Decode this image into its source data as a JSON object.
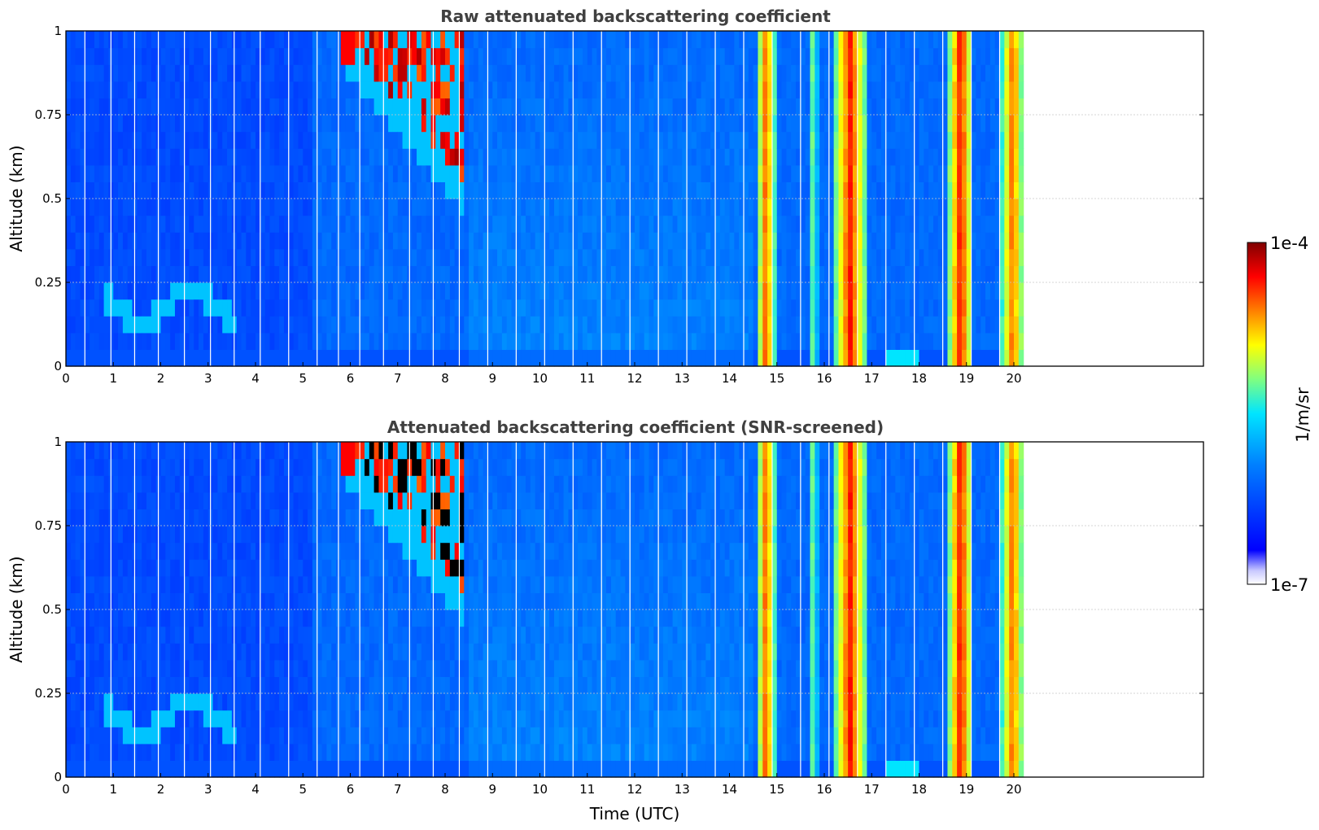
{
  "chart_data": [
    {
      "type": "heatmap",
      "title": "Raw attenuated backscattering coefficient",
      "xlabel": "",
      "ylabel": "Altitude (km)",
      "xlim": [
        0,
        24
      ],
      "ylim": [
        0,
        1
      ],
      "xticks": [
        "0",
        "1",
        "2",
        "3",
        "4",
        "5",
        "6",
        "7",
        "8",
        "9",
        "10",
        "11",
        "12",
        "13",
        "14",
        "15",
        "16",
        "17",
        "18",
        "19",
        "20"
      ],
      "yticks": [
        "0",
        "0.25",
        "0.5",
        "0.75",
        "1"
      ],
      "grid": true,
      "data_end_hour": 20.2,
      "variant": "raw"
    },
    {
      "type": "heatmap",
      "title": "Attenuated backscattering coefficient (SNR-screened)",
      "xlabel": "Time (UTC)",
      "ylabel": "Altitude (km)",
      "xlim": [
        0,
        24
      ],
      "ylim": [
        0,
        1
      ],
      "xticks": [
        "0",
        "1",
        "2",
        "3",
        "4",
        "5",
        "6",
        "7",
        "8",
        "9",
        "10",
        "11",
        "12",
        "13",
        "14",
        "15",
        "16",
        "17",
        "18",
        "19",
        "20"
      ],
      "yticks": [
        "0",
        "0.25",
        "0.5",
        "0.75",
        "1"
      ],
      "grid": true,
      "data_end_hour": 20.2,
      "variant": "screened"
    }
  ],
  "colorbar": {
    "label": "1/m/sr",
    "min_label": "1e-7",
    "max_label": "1e-4",
    "scale": "log",
    "colors": [
      "#ffffff",
      "#0000ff",
      "#0080ff",
      "#00e5ff",
      "#80ff80",
      "#ffff00",
      "#ff8000",
      "#ff0000",
      "#800000"
    ]
  },
  "profiles": {
    "low_hours": [
      0.5,
      1.0,
      1.6,
      2.2,
      2.7,
      3.1,
      3.4,
      4.0,
      4.6,
      5.0
    ],
    "gaps_hours": [
      0.4,
      0.95,
      1.45,
      1.95,
      2.5,
      3.05,
      3.55,
      4.1,
      4.7,
      5.3,
      5.75,
      6.2,
      6.7,
      7.25,
      7.75,
      8.3,
      8.9,
      9.5,
      10.1,
      10.7,
      11.3,
      11.9,
      12.5,
      13.1,
      13.7,
      14.3,
      14.9,
      15.5,
      16.1,
      16.7,
      17.3,
      17.9,
      18.5,
      19.1,
      19.7
    ],
    "strong_bands": [
      {
        "start": 14.6,
        "end": 14.95,
        "level": 0.82
      },
      {
        "start": 15.7,
        "end": 15.85,
        "level": 0.62
      },
      {
        "start": 16.25,
        "end": 16.85,
        "level": 0.86
      },
      {
        "start": 18.65,
        "end": 19.1,
        "level": 0.88
      },
      {
        "start": 19.75,
        "end": 20.2,
        "level": 0.8
      }
    ],
    "cloud": {
      "start_hour": 5.8,
      "end_hour": 8.4,
      "base_km": 0.55
    }
  }
}
